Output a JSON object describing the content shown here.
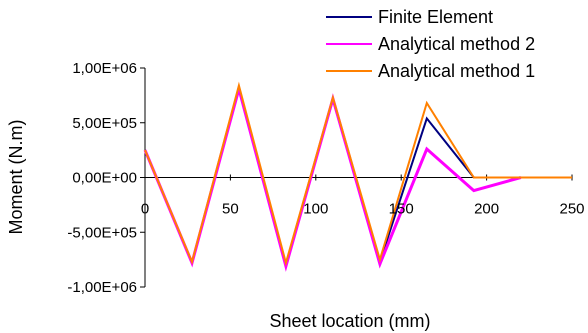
{
  "chart_data": {
    "type": "line",
    "xlabel": "Sheet location (mm)",
    "ylabel": "Moment (N.m)",
    "xlim": [
      0,
      250
    ],
    "ylim": [
      -1000000,
      1000000
    ],
    "x_ticks": [
      0,
      50,
      100,
      150,
      200,
      250
    ],
    "y_ticks": [
      1000000,
      500000,
      0,
      -500000,
      -1000000
    ],
    "x_tick_labels": [
      "0",
      "50",
      "100",
      "150",
      "200",
      "250"
    ],
    "y_tick_labels": [
      "1,00E+06",
      "5,00E+05",
      "0,00E+00",
      "-5,00E+05",
      "-1,00E+06"
    ],
    "legend_position": "top-right",
    "series": [
      {
        "name": "Finite Element",
        "color": "#000080",
        "x": [
          0,
          27.5,
          55,
          82.5,
          110,
          137.5,
          165,
          192.5,
          220,
          250
        ],
        "y": [
          250000,
          -780000,
          820000,
          -800000,
          710000,
          -770000,
          540000,
          0,
          0,
          0
        ]
      },
      {
        "name": "Analytical method 2",
        "color": "#ff00ff",
        "x": [
          0,
          27.5,
          55,
          82.5,
          110,
          137.5,
          165,
          192.5,
          220
        ],
        "y": [
          250000,
          -780000,
          810000,
          -810000,
          720000,
          -790000,
          260000,
          -120000,
          0
        ]
      },
      {
        "name": "Analytical method 1",
        "color": "#ff8000",
        "x": [
          0,
          27.5,
          55,
          82.5,
          110,
          137.5,
          165,
          192.5,
          220,
          250
        ],
        "y": [
          250000,
          -770000,
          840000,
          -780000,
          730000,
          -750000,
          680000,
          0,
          0,
          0
        ]
      }
    ]
  }
}
